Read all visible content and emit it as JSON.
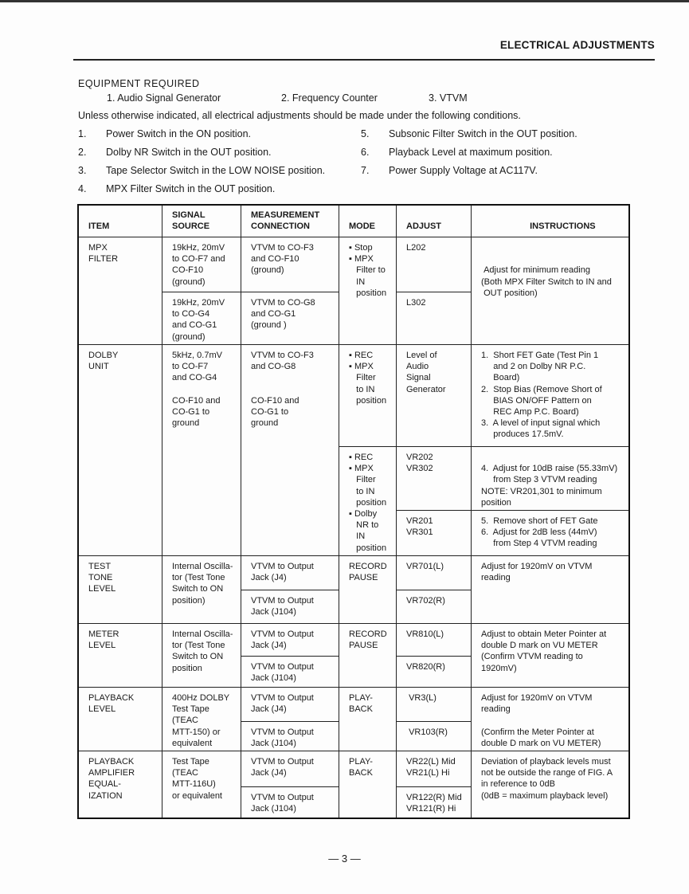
{
  "header": {
    "title": "ELECTRICAL ADJUSTMENTS"
  },
  "equipment": {
    "heading": "EQUIPMENT REQUIRED",
    "items": [
      "1.  Audio Signal Generator",
      "2.  Frequency Counter",
      "3.  VTVM"
    ]
  },
  "conditions_intro": "Unless otherwise indicated, all electrical adjustments should be made under the following conditions.",
  "conditions": [
    {
      "num": "1.",
      "text": "Power Switch in the ON position."
    },
    {
      "num": "2.",
      "text": "Dolby NR Switch in the OUT position."
    },
    {
      "num": "3.",
      "text": "Tape Selector Switch in the LOW NOISE position."
    },
    {
      "num": "4.",
      "text": "MPX Filter Switch in the OUT position."
    },
    {
      "num": "5.",
      "text": "Subsonic Filter Switch in the OUT position."
    },
    {
      "num": "6.",
      "text": "Playback Level at maximum position."
    },
    {
      "num": "7.",
      "text": "Power Supply Voltage at AC117V."
    }
  ],
  "table": {
    "headers": {
      "item": "\nITEM",
      "signal": "SIGNAL\nSOURCE",
      "measurement": "MEASUREMENT\nCONNECTION",
      "mode": "\nMODE",
      "adjust": "\nADJUST",
      "instructions": "\n                    INSTRUCTIONS"
    },
    "mpx": {
      "item": "MPX\nFILTER",
      "signal": [
        "19kHz, 20mV\nto CO-F7 and\nCO-F10\n(ground)",
        "19kHz, 20mV\nto CO-G4\nand CO-G1\n(ground)"
      ],
      "measurement": [
        "VTVM to CO-F3\nand CO-F10\n(ground)",
        "VTVM to CO-G8\nand CO-G1\n(ground )"
      ],
      "mode": "▪ Stop\n▪ MPX\n   Filter to\n   IN\n   position",
      "adjust": [
        "L202",
        "L302"
      ],
      "instructions": "\n\n Adjust for minimum reading\n(Both MPX Filter Switch to IN and\n OUT position)"
    },
    "dolby": {
      "item": "DOLBY\nUNIT",
      "signal": "5kHz, 0.7mV\nto CO-F7\nand CO-G4\n\nCO-F10 and\nCO-G1 to\nground",
      "measurement": "VTVM to CO-F3\nand CO-G8\n\n\nCO-F10 and\nCO-G1 to\nground",
      "mode": [
        "▪ REC\n▪ MPX\n   Filter\n   to IN\n   position",
        "▪ REC\n▪ MPX\n   Filter\n   to IN\n   position\n▪ Dolby\n   NR to\n   IN\n   position"
      ],
      "adjust": [
        "Level of\nAudio\nSignal\nGenerator",
        "VR202\nVR302",
        "VR201\nVR301"
      ],
      "instructions": [
        "1.  Short FET Gate (Test Pin 1\n     and 2 on Dolby NR P.C.\n     Board)\n2.  Stop Bias (Remove Short of\n     BIAS ON/OFF Pattern on\n     REC Amp P.C. Board)\n3.  A level of input signal which\n     produces 17.5mV.",
        "\n4.  Adjust for 10dB raise (55.33mV)\n     from Step 3 VTVM reading\nNOTE: VR201,301 to minimum\nposition",
        "5.  Remove short of FET Gate\n6.  Adjust for 2dB less (44mV)\n     from Step 4 VTVM reading"
      ]
    },
    "test_tone": {
      "item": "TEST\nTONE\nLEVEL",
      "signal": "Internal Oscilla-\ntor (Test Tone\nSwitch to ON\nposition)",
      "measurement": [
        "VTVM to Output\nJack (J4)",
        "VTVM to Output\nJack (J104)"
      ],
      "mode": "RECORD\nPAUSE",
      "adjust": [
        "VR701(L)",
        "VR702(R)"
      ],
      "instructions": "Adjust for 1920mV on VTVM\nreading"
    },
    "meter": {
      "item": "METER\nLEVEL",
      "signal": "Internal Oscilla-\ntor (Test Tone\nSwitch to ON\nposition",
      "measurement": [
        "VTVM to Output\nJack (J4)",
        "VTVM to Output\nJack (J104)"
      ],
      "mode": "RECORD\nPAUSE",
      "adjust": [
        "VR810(L)",
        "VR820(R)"
      ],
      "instructions": "Adjust to obtain Meter Pointer at\ndouble D mark on VU METER\n(Confirm VTVM reading to\n1920mV)"
    },
    "playback": {
      "item": "PLAYBACK\nLEVEL",
      "signal": "400Hz DOLBY\nTest Tape\n(TEAC\nMTT-150) or\nequivalent",
      "measurement": [
        "VTVM to Output\nJack (J4)",
        "VTVM to Output\nJack (J104)"
      ],
      "mode": "PLAY-\nBACK",
      "adjust": [
        " VR3(L)",
        " VR103(R)"
      ],
      "instructions": "Adjust for 1920mV on VTVM\nreading\n\n(Confirm the Meter Pointer at\ndouble D mark on VU METER)"
    },
    "eq": {
      "item": "PLAYBACK\nAMPLIFIER\nEQUAL-\nIZATION",
      "signal": "Test Tape\n(TEAC\nMTT-116U)\nor equivalent",
      "measurement": [
        "VTVM to Output\nJack (J4)",
        "VTVM to Output\nJack (J104)"
      ],
      "mode": "PLAY-\nBACK",
      "adjust": [
        "VR22(L) Mid\nVR21(L) Hi",
        "VR122(R) Mid\nVR121(R) Hi"
      ],
      "instructions": "Deviation of playback levels must\nnot be outside the range of FIG. A\nin reference to 0dB\n(0dB = maximum playback level)"
    }
  },
  "footer": {
    "page": "— 3 —"
  }
}
